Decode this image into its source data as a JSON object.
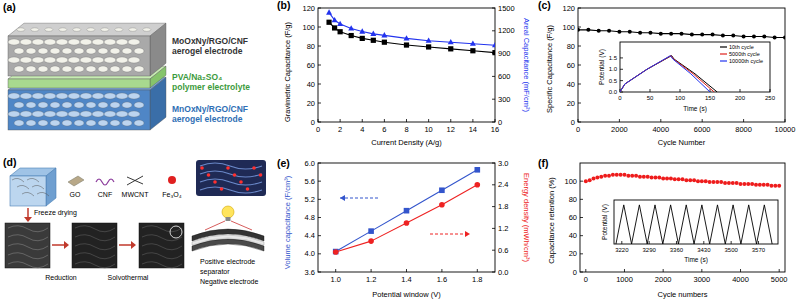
{
  "chart_data": [
    {
      "type": "line",
      "title": "(b)",
      "x_label": "Current Density (A/g)",
      "y_label": "Gravimetric Capacitance (F/g)",
      "y2_label": "Areal Capacitance (mF/cm²)",
      "x": [
        1,
        1.5,
        2,
        3,
        4,
        5,
        6,
        8,
        10,
        12,
        14,
        16
      ],
      "xlim": [
        0,
        16
      ],
      "xticks": [
        0,
        2,
        4,
        6,
        8,
        10,
        12,
        14,
        16
      ],
      "ylim": [
        0,
        120
      ],
      "yticks": [
        0,
        20,
        40,
        60,
        80,
        100,
        120
      ],
      "y2lim": [
        0,
        1500
      ],
      "y2ticks": [
        0,
        300,
        600,
        900,
        1200,
        1500
      ],
      "series": [
        {
          "color": "#000000",
          "marker": "square",
          "values": [
            105,
            99,
            95,
            91,
            88,
            86,
            84,
            81,
            79,
            77,
            75,
            73
          ]
        },
        {
          "color": "#2233ee",
          "marker": "triangle",
          "axis": "y2",
          "values": [
            1440,
            1340,
            1290,
            1230,
            1190,
            1160,
            1140,
            1100,
            1070,
            1050,
            1030,
            1010
          ]
        }
      ]
    },
    {
      "type": "line",
      "title": "(c)",
      "x_label": "Cycle Number",
      "y_label": "Specific Capacitance (F/g)",
      "x": [
        0,
        500,
        1000,
        1500,
        2000,
        2500,
        3000,
        3500,
        4000,
        4500,
        5000,
        5500,
        6000,
        6500,
        7000,
        7500,
        8000,
        8500,
        9000,
        9500,
        10000
      ],
      "xlim": [
        0,
        10000
      ],
      "xticks": [
        0,
        2000,
        4000,
        6000,
        8000,
        10000
      ],
      "ylim": [
        0,
        120
      ],
      "yticks": [
        0,
        20,
        40,
        60,
        80,
        100,
        120
      ],
      "series": [
        {
          "color": "#000000",
          "marker": "circle",
          "values": [
            97,
            97,
            96,
            96,
            95,
            95,
            94,
            94,
            93,
            93,
            93,
            92,
            92,
            92,
            91,
            91,
            90,
            90,
            90,
            89,
            89
          ]
        }
      ]
    },
    {
      "type": "line",
      "x_label": "Time (s)",
      "y_label": "Potential (V)",
      "xlim": [
        0,
        250
      ],
      "xticks": [
        0,
        50,
        100,
        150,
        200,
        250
      ],
      "ylim": [
        0,
        2.2
      ],
      "yticks": [
        {
          "value": 0,
          "label": "0.0"
        },
        0.5,
        {
          "value": 1,
          "label": "1.0"
        },
        1.5
      ],
      "legend": "upper right",
      "series": [
        {
          "name": "10th cycle",
          "color": "#000000",
          "x": [
            0,
            8,
            45,
            86,
            90,
            125,
            162
          ],
          "values": [
            0,
            0.35,
            1.0,
            1.6,
            1.45,
            0.8,
            0
          ]
        },
        {
          "name": "5000th cycle",
          "color": "#e0201b",
          "x": [
            0,
            8,
            45,
            85,
            89,
            122,
            157
          ],
          "values": [
            0,
            0.35,
            1.0,
            1.6,
            1.45,
            0.8,
            0
          ]
        },
        {
          "name": "10000th cycle",
          "color": "#2233ee",
          "x": [
            0,
            8,
            45,
            84,
            88,
            118,
            150
          ],
          "values": [
            0,
            0.35,
            1.0,
            1.6,
            1.45,
            0.8,
            0
          ]
        }
      ]
    },
    {
      "type": "line",
      "title": "(e)",
      "x_label": "Potential window (V)",
      "y_label": "Volume capacitance (F/cm³)",
      "y2_label": "Energy density (mWh/cm³)",
      "x": [
        1,
        1.2,
        1.4,
        1.6,
        1.8
      ],
      "xlim": [
        0.9,
        1.9
      ],
      "xticks": [
        {
          "value": 1,
          "label": "1.0"
        },
        1.2,
        1.4,
        1.6,
        1.8
      ],
      "ylim": [
        3.6,
        6
      ],
      "yticks": [
        3.6,
        {
          "value": 4,
          "label": "4.0"
        },
        4.4,
        4.8,
        5.2,
        5.6,
        {
          "value": 6,
          "label": "6.0"
        }
      ],
      "y2lim": [
        0,
        3
      ],
      "y2ticks": [
        {
          "value": 0,
          "label": "0.0"
        },
        0.6,
        1.2,
        1.8,
        2.4,
        {
          "value": 3,
          "label": "3.0"
        }
      ],
      "series": [
        {
          "color": "#3355cc",
          "marker": "square",
          "values": [
            4.05,
            4.5,
            4.95,
            5.4,
            5.85
          ]
        },
        {
          "color": "#ee2222",
          "marker": "circle",
          "axis": "y2",
          "values": [
            0.55,
            0.85,
            1.35,
            1.85,
            2.4
          ]
        }
      ]
    },
    {
      "type": "scatter",
      "title": "(f)",
      "x_label": "Cycle numbers",
      "y_label": "Capacitance retention (%)",
      "x": [
        0,
        100,
        200,
        300,
        400,
        500,
        600,
        700,
        800,
        900,
        1000,
        1100,
        1200,
        1300,
        1400,
        1500,
        1600,
        1700,
        1800,
        1900,
        2000,
        2100,
        2200,
        2300,
        2400,
        2500,
        2600,
        2700,
        2800,
        2900,
        3000,
        3100,
        3200,
        3300,
        3400,
        3500,
        3600,
        3700,
        3800,
        3900,
        4000,
        4100,
        4200,
        4300,
        4400,
        4500,
        4600,
        4700,
        4800,
        4900,
        5000
      ],
      "xlim": [
        -150,
        5150
      ],
      "xticks": [
        0,
        1000,
        2000,
        3000,
        4000,
        5000
      ],
      "ylim": [
        0,
        120
      ],
      "yticks": [
        0,
        20,
        40,
        60,
        80,
        100
      ],
      "series": [
        {
          "color": "#ee1c1c",
          "marker": "circle",
          "line_style": "none",
          "values": [
            100,
            101,
            103,
            104,
            105,
            106,
            106,
            107,
            107,
            107,
            107,
            106,
            106,
            106,
            105,
            105,
            105,
            104,
            104,
            104,
            103,
            103,
            103,
            102,
            102,
            102,
            101,
            101,
            101,
            100,
            100,
            100,
            99,
            99,
            99,
            99,
            98,
            98,
            98,
            98,
            97,
            97,
            97,
            97,
            96,
            96,
            96,
            96,
            95,
            95,
            95
          ]
        }
      ]
    },
    {
      "type": "line",
      "x_label": "Time (s)",
      "y_label": "Potential (V)",
      "tick_labels": "x",
      "x": [
        3205,
        3225,
        3245,
        3265,
        3285,
        3305,
        3325,
        3345,
        3365,
        3385,
        3405,
        3425,
        3445,
        3465,
        3485,
        3505,
        3525,
        3545,
        3565,
        3585,
        3605
      ],
      "xlim": [
        3200,
        3620
      ],
      "xticks": [
        3220,
        3290,
        3360,
        3430,
        3500,
        3570
      ],
      "ylim": [
        0,
        1.8
      ],
      "series": [
        {
          "color": "#000000",
          "values": [
            0,
            1.6,
            0,
            1.6,
            0,
            1.6,
            0,
            1.6,
            0,
            1.6,
            0,
            1.6,
            0,
            1.6,
            0,
            1.6,
            0,
            1.6,
            0,
            1.6,
            0
          ]
        }
      ]
    }
  ],
  "diagram_a": {
    "label": "(a)",
    "layers": [
      {
        "lines": [
          "MoOxNy/RGO/CNF",
          "aerogel electrode"
        ]
      },
      {
        "lines": [
          "PVA/Na₂SO₄",
          "polymer electrolyte"
        ]
      },
      {
        "lines": [
          "MnOxNy/RGO/CNF",
          "aerogel electrode"
        ]
      }
    ]
  },
  "diagram_d": {
    "label": "(d)",
    "materials": [
      "GO",
      "CNF",
      "MWCNT",
      "Fe₃O₄"
    ],
    "steps": [
      "Freeze drying",
      "Reduction",
      "Solvothermal"
    ],
    "device": [
      "Positive electrode",
      "separator",
      "Negative electrode"
    ]
  }
}
